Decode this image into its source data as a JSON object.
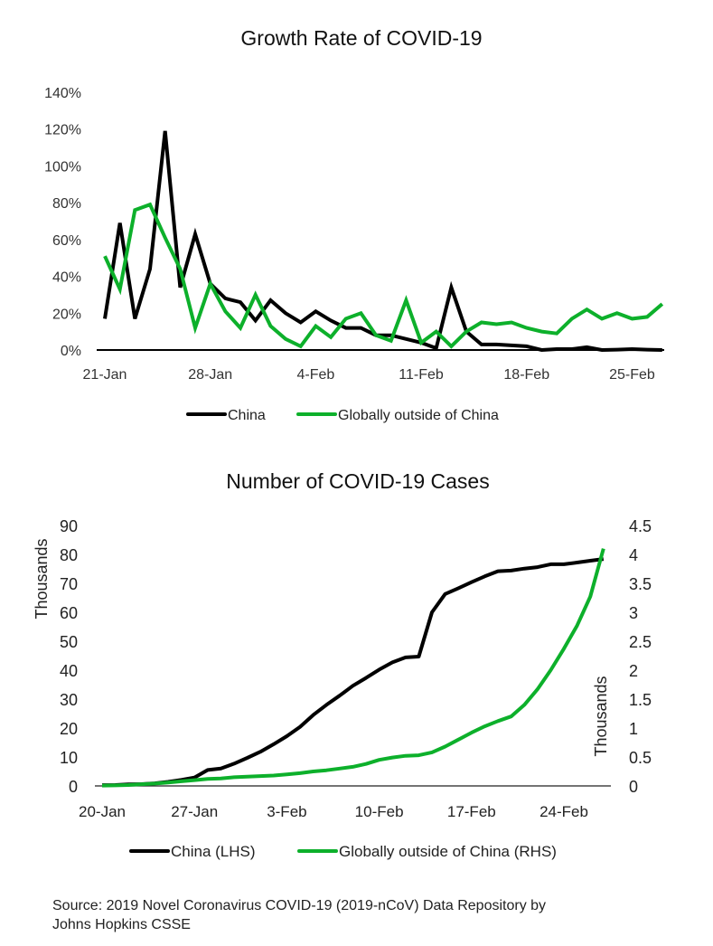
{
  "chart_data": [
    {
      "id": "growth",
      "type": "line",
      "title": "Growth Rate of COVID-19",
      "xlabel": "",
      "ylabel": "",
      "ylim": [
        0,
        140
      ],
      "y_unit": "%",
      "yticks": [
        "0%",
        "20%",
        "40%",
        "60%",
        "80%",
        "100%",
        "120%",
        "140%"
      ],
      "ytick_values": [
        0,
        20,
        40,
        60,
        80,
        100,
        120,
        140
      ],
      "start_date": "21-Jan",
      "xticks": [
        {
          "label": "21-Jan",
          "day": 0
        },
        {
          "label": "28-Jan",
          "day": 7
        },
        {
          "label": "4-Feb",
          "day": 14
        },
        {
          "label": "11-Feb",
          "day": 21
        },
        {
          "label": "18-Feb",
          "day": 28
        },
        {
          "label": "25-Feb",
          "day": 35
        }
      ],
      "grid": false,
      "legend_position": "bottom",
      "series": [
        {
          "name": "China",
          "color": "#000000",
          "values": [
            17,
            69,
            17,
            44,
            119,
            34,
            63,
            36,
            28,
            26,
            16,
            27,
            20,
            15,
            21,
            16,
            12,
            12,
            8,
            8,
            6,
            4,
            1,
            34,
            10,
            3,
            3,
            2.5,
            2,
            0,
            0.5,
            0.5,
            1.5,
            0,
            0.2,
            0.5,
            0.2,
            0
          ]
        },
        {
          "name": "Globally outside of China",
          "color": "#0db02b",
          "values": [
            51,
            33,
            76,
            79,
            61,
            44,
            12,
            36,
            21,
            12,
            30,
            13,
            6,
            2,
            13,
            7,
            17,
            20,
            8,
            5,
            27,
            4,
            10,
            2,
            10,
            15,
            14,
            15,
            12,
            10,
            9,
            17,
            22,
            17,
            20,
            17,
            18,
            25
          ]
        }
      ]
    },
    {
      "id": "cases",
      "type": "line",
      "title": "Number of COVID-19 Cases",
      "xlabel": "",
      "ylabel": "Thousands",
      "ylabel_right": "Thousands",
      "ylim": [
        0,
        90
      ],
      "ylim_right": [
        0,
        4.5
      ],
      "yticks": [
        "0",
        "10",
        "20",
        "30",
        "40",
        "50",
        "60",
        "70",
        "80",
        "90"
      ],
      "ytick_values": [
        0,
        10,
        20,
        30,
        40,
        50,
        60,
        70,
        80,
        90
      ],
      "yticks_right": [
        "0",
        "0.5",
        "1",
        "1.5",
        "2",
        "2.5",
        "3",
        "3.5",
        "4",
        "4.5"
      ],
      "ytick_values_right": [
        0,
        0.5,
        1,
        1.5,
        2,
        2.5,
        3,
        3.5,
        4,
        4.5
      ],
      "start_date": "20-Jan",
      "xticks": [
        {
          "label": "20-Jan",
          "day": 0
        },
        {
          "label": "27-Jan",
          "day": 7
        },
        {
          "label": "3-Feb",
          "day": 14
        },
        {
          "label": "10-Feb",
          "day": 21
        },
        {
          "label": "17-Feb",
          "day": 28
        },
        {
          "label": "24-Feb",
          "day": 35
        }
      ],
      "grid": false,
      "legend_position": "bottom",
      "series": [
        {
          "name": "China (LHS)",
          "axis": "left",
          "color": "#000000",
          "values": [
            0.28,
            0.3,
            0.55,
            0.64,
            0.92,
            1.4,
            2.1,
            2.9,
            5.5,
            6.0,
            7.7,
            9.7,
            11.8,
            14.4,
            17.2,
            20.4,
            24.5,
            28.0,
            31.2,
            34.6,
            37.3,
            40.2,
            42.7,
            44.4,
            44.7,
            60.0,
            66.3,
            68.3,
            70.4,
            72.4,
            74.2,
            74.4,
            75.1,
            75.6,
            76.6,
            76.6,
            77.2,
            77.8,
            78.4
          ]
        },
        {
          "name": "Globally outside of China (RHS)",
          "axis": "right",
          "color": "#0db02b",
          "values": [
            0.004,
            0.006,
            0.009,
            0.015,
            0.03,
            0.04,
            0.06,
            0.08,
            0.1,
            0.12,
            0.13,
            0.15,
            0.16,
            0.17,
            0.18,
            0.2,
            0.22,
            0.25,
            0.27,
            0.3,
            0.33,
            0.38,
            0.45,
            0.49,
            0.52,
            0.53,
            0.58,
            0.68,
            0.8,
            0.92,
            1.03,
            1.12,
            1.2,
            1.4,
            1.67,
            2.0,
            2.37,
            2.77,
            3.27,
            4.1
          ]
        }
      ]
    }
  ],
  "footer": {
    "source_line1": "Source: 2019 Novel Coronavirus COVID-19 (2019-nCoV) Data Repository by",
    "source_line2": "Johns Hopkins CSSE"
  }
}
